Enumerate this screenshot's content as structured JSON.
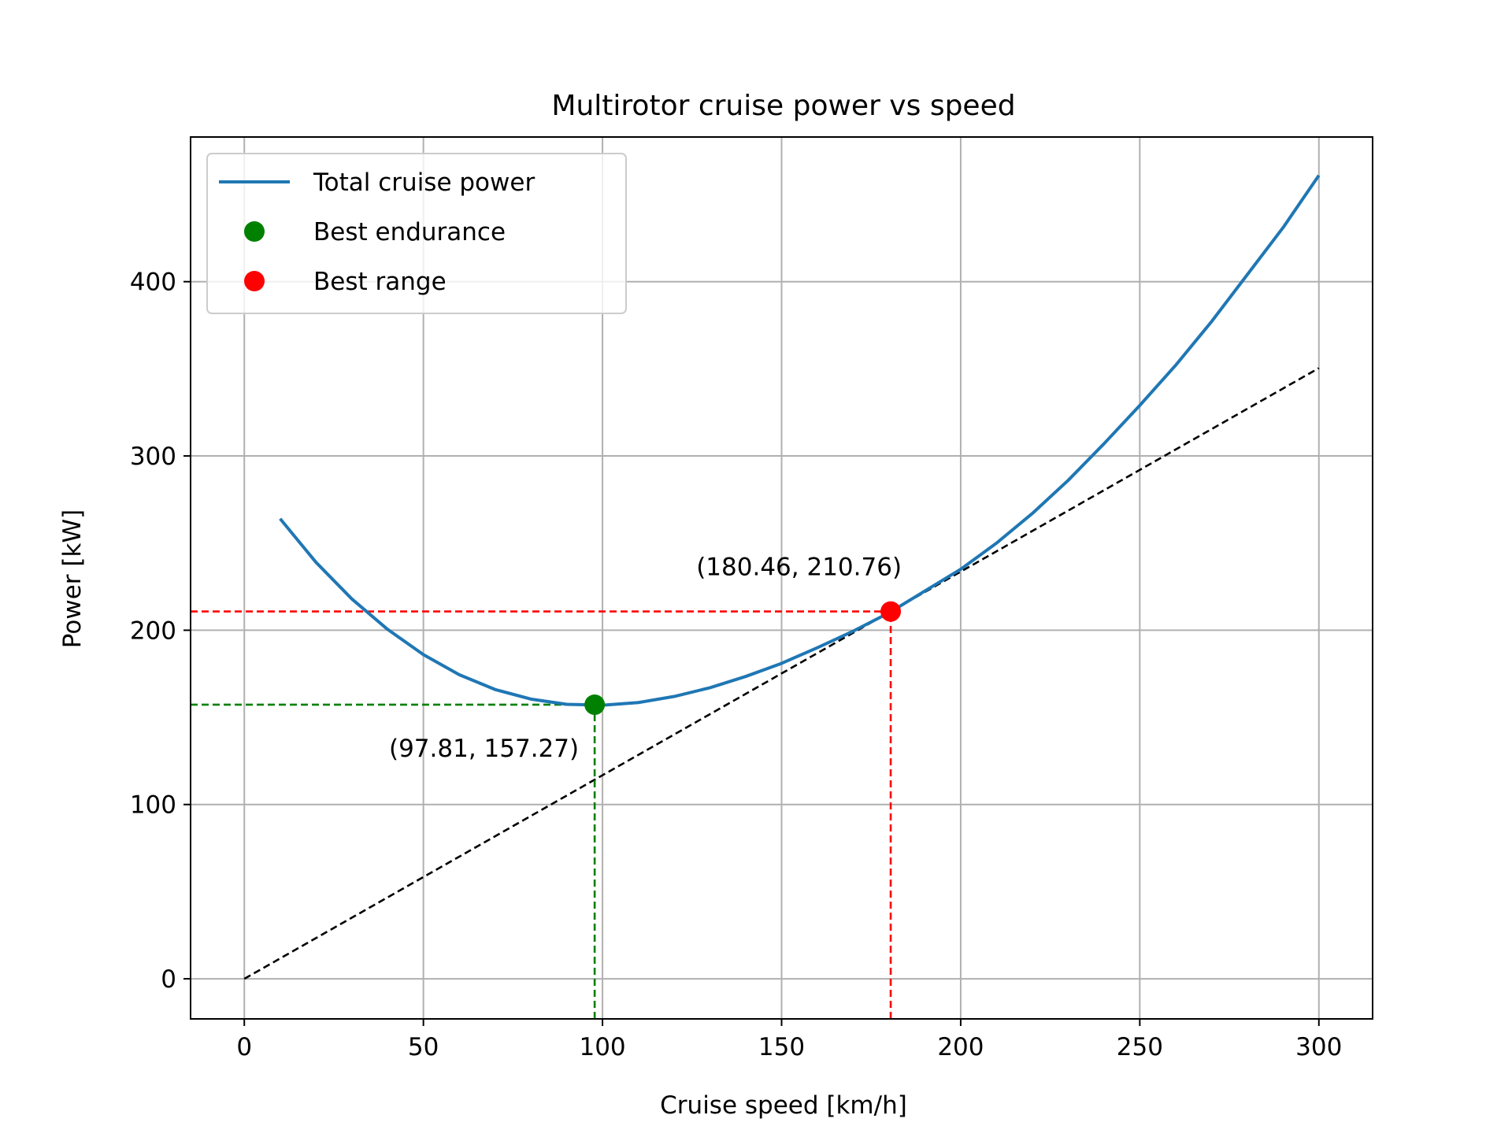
{
  "chart_data": {
    "type": "line",
    "title": "Multirotor cruise power vs speed",
    "xlabel": "Cruise speed [km/h]",
    "ylabel": "Power [kW]",
    "xlim": [
      -15,
      315
    ],
    "ylim": [
      -23,
      483
    ],
    "x_ticks": [
      0,
      50,
      100,
      150,
      200,
      250,
      300
    ],
    "y_ticks": [
      0,
      100,
      200,
      300,
      400
    ],
    "grid": true,
    "legend_position": "upper-left",
    "series": [
      {
        "name": "Total cruise power",
        "color": "#1f77b4",
        "style": "solid",
        "x": [
          10,
          20,
          30,
          40,
          50,
          60,
          70,
          80,
          90,
          100,
          110,
          120,
          130,
          140,
          150,
          160,
          170,
          180,
          190,
          200,
          210,
          220,
          230,
          240,
          250,
          260,
          270,
          280,
          290,
          300
        ],
        "y": [
          264,
          239,
          218,
          200.5,
          186,
          174.5,
          166,
          160.5,
          157.5,
          157,
          158.5,
          162,
          167,
          173.5,
          181,
          190,
          199.5,
          210,
          222.5,
          235,
          250,
          267,
          286,
          307,
          329,
          352,
          377,
          404,
          431,
          461
        ]
      },
      {
        "name": "Best endurance",
        "color": "#008000",
        "style": "marker",
        "x": [
          97.81
        ],
        "y": [
          157.27
        ]
      },
      {
        "name": "Best range",
        "color": "#ff0000",
        "style": "marker",
        "x": [
          180.46
        ],
        "y": [
          210.76
        ]
      }
    ],
    "reference_lines": [
      {
        "kind": "tangent",
        "color": "#000000",
        "from": [
          0,
          0
        ],
        "to": [
          300,
          350.4
        ]
      },
      {
        "kind": "endurance-guide-h",
        "color": "#008000",
        "from": [
          -15,
          157.27
        ],
        "to": [
          97.81,
          157.27
        ]
      },
      {
        "kind": "endurance-guide-v",
        "color": "#008000",
        "from": [
          97.81,
          -23
        ],
        "to": [
          97.81,
          157.27
        ]
      },
      {
        "kind": "range-guide-h",
        "color": "#ff0000",
        "from": [
          -15,
          210.76
        ],
        "to": [
          180.46,
          210.76
        ]
      },
      {
        "kind": "range-guide-v",
        "color": "#ff0000",
        "from": [
          180.46,
          -23
        ],
        "to": [
          180.46,
          210.76
        ]
      }
    ],
    "annotations": [
      {
        "text": "(97.81, 157.27)",
        "anchor_x": 97.81,
        "anchor_y": 157.27,
        "placement": "below-left"
      },
      {
        "text": "(180.46, 210.76)",
        "anchor_x": 180.46,
        "anchor_y": 210.76,
        "placement": "above-left"
      }
    ]
  }
}
